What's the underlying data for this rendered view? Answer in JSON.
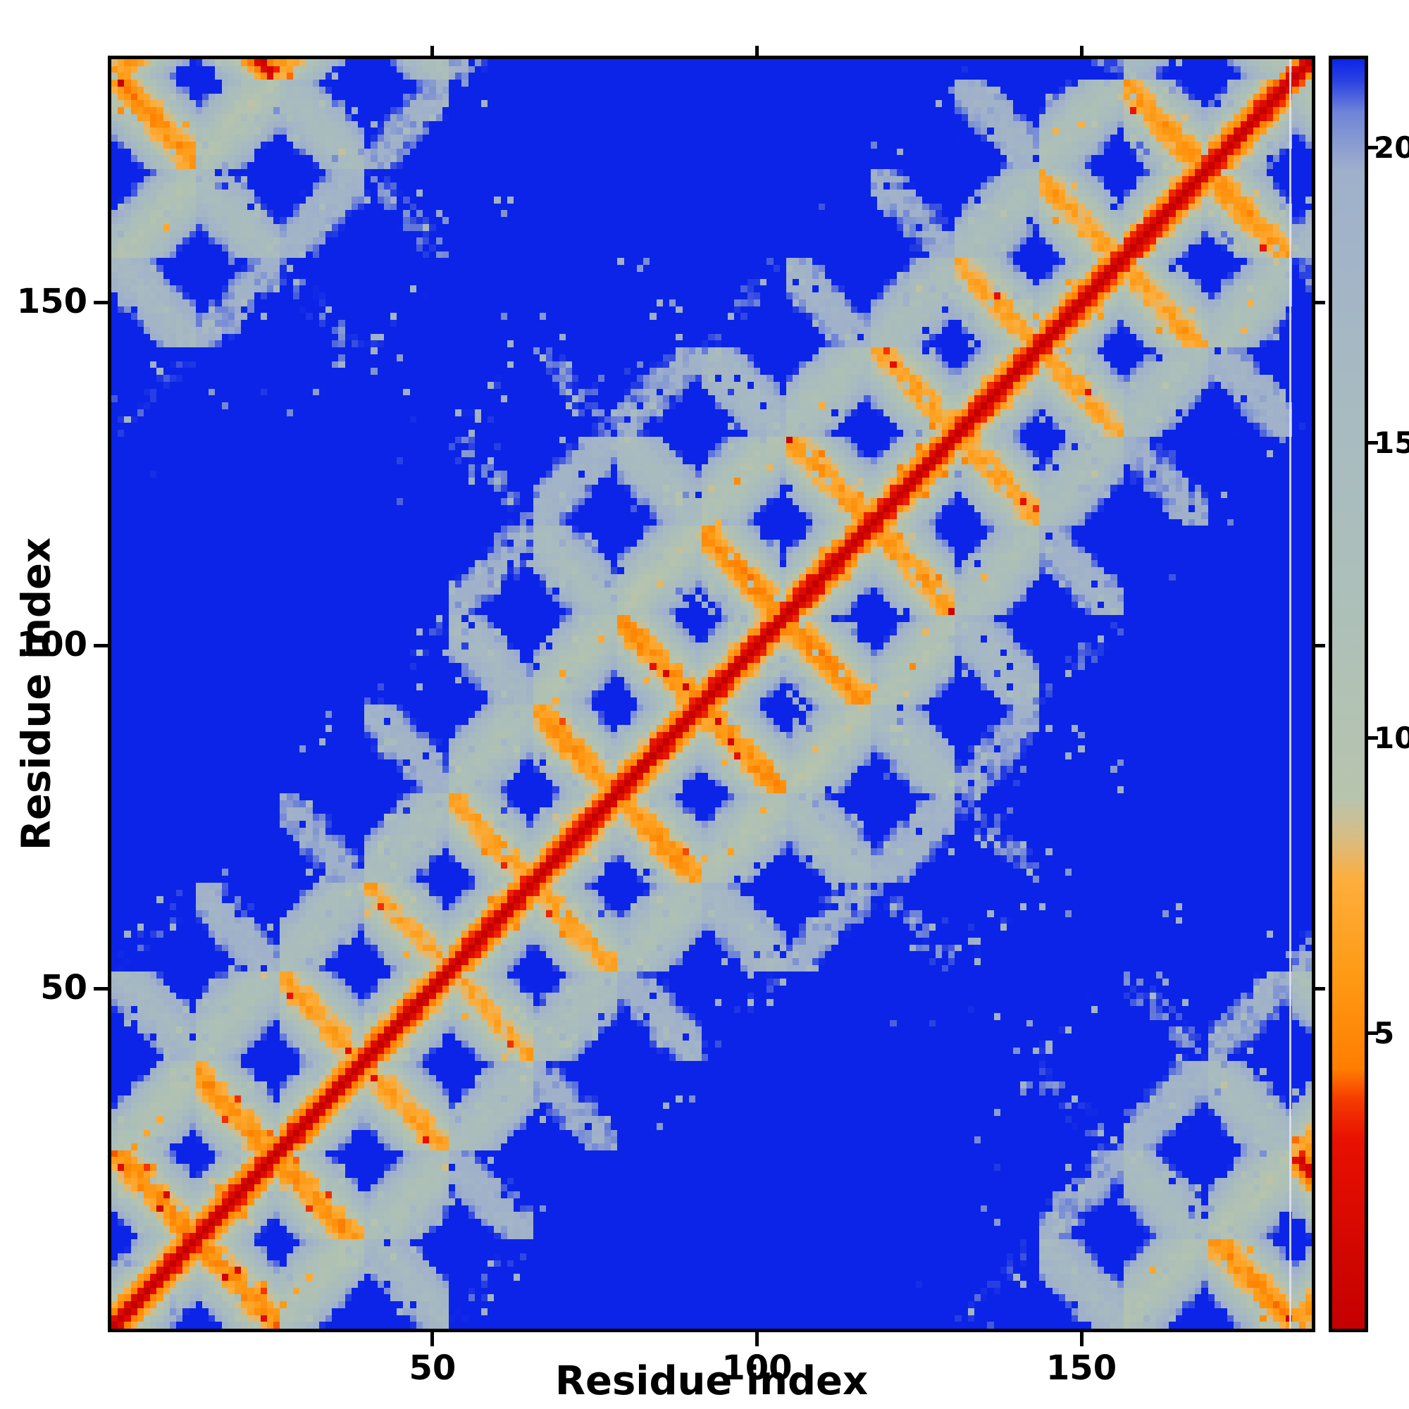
{
  "figure": {
    "title": "",
    "x_axis_label": "Residue index",
    "y_axis_label": "Residue index",
    "x_ticks": [
      50,
      100,
      150
    ],
    "y_ticks": [
      50,
      100,
      150
    ],
    "frame_color": "#000000",
    "background_color": "#ffffff",
    "pale_column_residue": 182,
    "pale_column_color": "rgba(222,226,238,0.9)"
  },
  "colorbar": {
    "ticks": [
      5,
      10,
      15,
      20
    ],
    "vmin": 0,
    "vmax": 21.5,
    "position": "right"
  },
  "chart_data": {
    "type": "heatmap",
    "title": "",
    "xlabel": "Residue index",
    "ylabel": "Residue index",
    "x_range": [
      1,
      185
    ],
    "y_range": [
      1,
      185
    ],
    "x_ticks": [
      50,
      100,
      150
    ],
    "y_ticks": [
      50,
      100,
      150
    ],
    "colorbar_ticks": [
      5,
      10,
      15,
      20
    ],
    "value_range": [
      0,
      21.5
    ],
    "grid": false,
    "legend_position": "colorbar-right",
    "content": "Symmetric residue-residue distance matrix: thick red main diagonal (near-zero distances), orange parallel and antiparallel contact stripes forming a woven honeycomb pattern with blue holes, pale blue-grey mid-range halo around contacts, deep blue background for distant pairs, antiparallel closure stripes near the top-left and bottom-right corners",
    "colormap_stops": [
      {
        "v": 0.0,
        "c": "#c40000"
      },
      {
        "v": 3.2,
        "c": "#e81000"
      },
      {
        "v": 3.9,
        "c": "#f63c00"
      },
      {
        "v": 4.4,
        "c": "#ff7e00"
      },
      {
        "v": 6.0,
        "c": "#ff9a14"
      },
      {
        "v": 7.6,
        "c": "#fdae3c"
      },
      {
        "v": 8.3,
        "c": "#d8bc82"
      },
      {
        "v": 9.0,
        "c": "#b7c4ae"
      },
      {
        "v": 12.0,
        "c": "#adc0b8"
      },
      {
        "v": 16.0,
        "c": "#a7bac2"
      },
      {
        "v": 19.6,
        "c": "#9fb0cb"
      },
      {
        "v": 20.6,
        "c": "#6f84d8"
      },
      {
        "v": 21.1,
        "c": "#2e45e2"
      },
      {
        "v": 21.5,
        "c": "#0b24e8"
      }
    ],
    "render_model": {
      "n_residues": 185,
      "residues_per_row": 13,
      "ring_rows": 14,
      "row_gap": 5.2,
      "flatten": 0.75,
      "x_spacing": 2.3,
      "row_shift": 2.2,
      "jitter": 0.5,
      "backbone_step": 2.2,
      "noise": 1.0,
      "speckle_rate": 0.028,
      "speckle_down": 4.3,
      "speckle_up": 4.5,
      "overlap_lift": 6.0,
      "seed": 7
    }
  }
}
